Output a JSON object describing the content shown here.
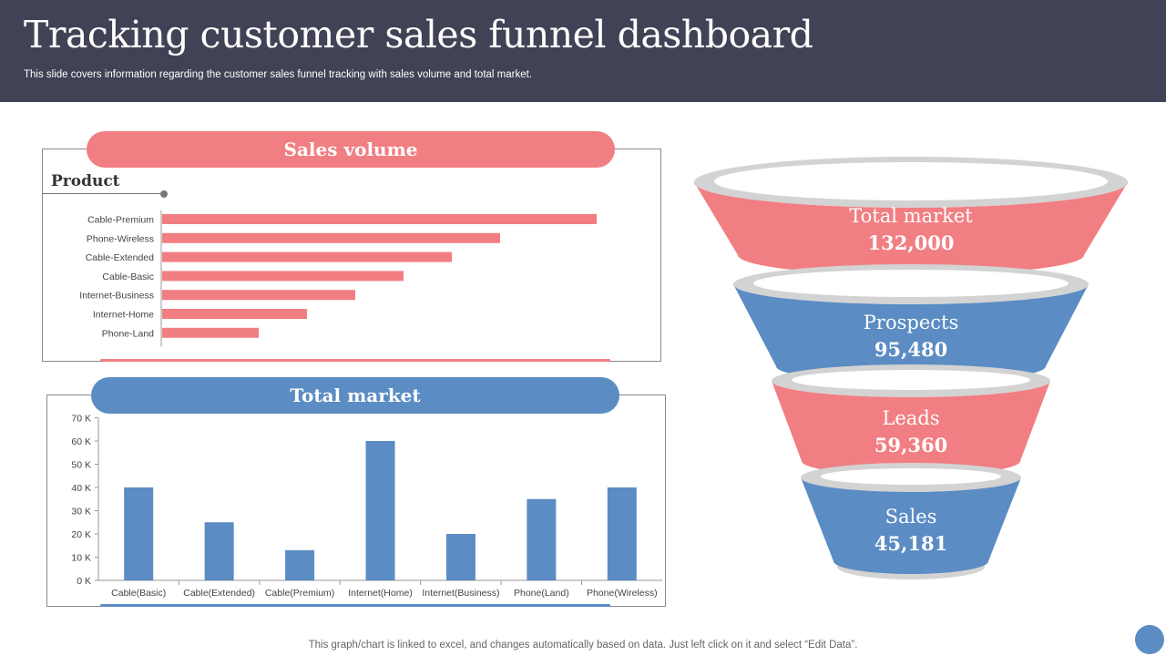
{
  "header": {
    "title": "Tracking customer sales funnel dashboard",
    "subtitle": "This slide covers information regarding the customer sales funnel tracking with sales volume and total market."
  },
  "sales_volume": {
    "heading": "Sales volume",
    "product_label": "Product"
  },
  "total_market_panel": {
    "heading": "Total market"
  },
  "funnel": {
    "stages": [
      {
        "label": "Total market",
        "value": "132,000",
        "color": "#f17e82"
      },
      {
        "label": "Prospects",
        "value": "95,480",
        "color": "#5b8cc3"
      },
      {
        "label": "Leads",
        "value": "59,360",
        "color": "#f17e82"
      },
      {
        "label": "Sales",
        "value": "45,181",
        "color": "#5b8cc3"
      }
    ]
  },
  "footer": {
    "note": "This graph/chart is linked to excel, and changes automatically based on data. Just left click on it and select “Edit Data”."
  },
  "colors": {
    "header_bg": "#414255",
    "accent_red": "#f17e82",
    "accent_blue": "#5b8cc3"
  },
  "chart_data": [
    {
      "type": "bar",
      "orientation": "horizontal",
      "categories": [
        "Cable-Premium",
        "Phone-Wireless",
        "Cable-Extended",
        "Cable-Basic",
        "Internet-Business",
        "Internet-Home",
        "Phone-Land"
      ],
      "values": [
        9,
        7,
        6,
        5,
        4,
        3,
        2
      ],
      "color": "#f17e82",
      "xlim": [
        0,
        10
      ],
      "grid": false,
      "legend": "none"
    },
    {
      "type": "bar",
      "categories": [
        "Cable(Basic)",
        "Cable(Extended)",
        "Cable(Premium)",
        "Internet(Home)",
        "Internet(Business)",
        "Phone(Land)",
        "Phone(Wireless)"
      ],
      "values": [
        40000,
        25000,
        13000,
        60000,
        20000,
        35000,
        40000
      ],
      "y_ticks": [
        "0 K",
        "10 K",
        "20 K",
        "30 K",
        "40 K",
        "50 K",
        "60 K",
        "70 K"
      ],
      "ylim": [
        0,
        70000
      ],
      "color": "#5b8cc3",
      "grid": false,
      "legend": "none"
    }
  ]
}
